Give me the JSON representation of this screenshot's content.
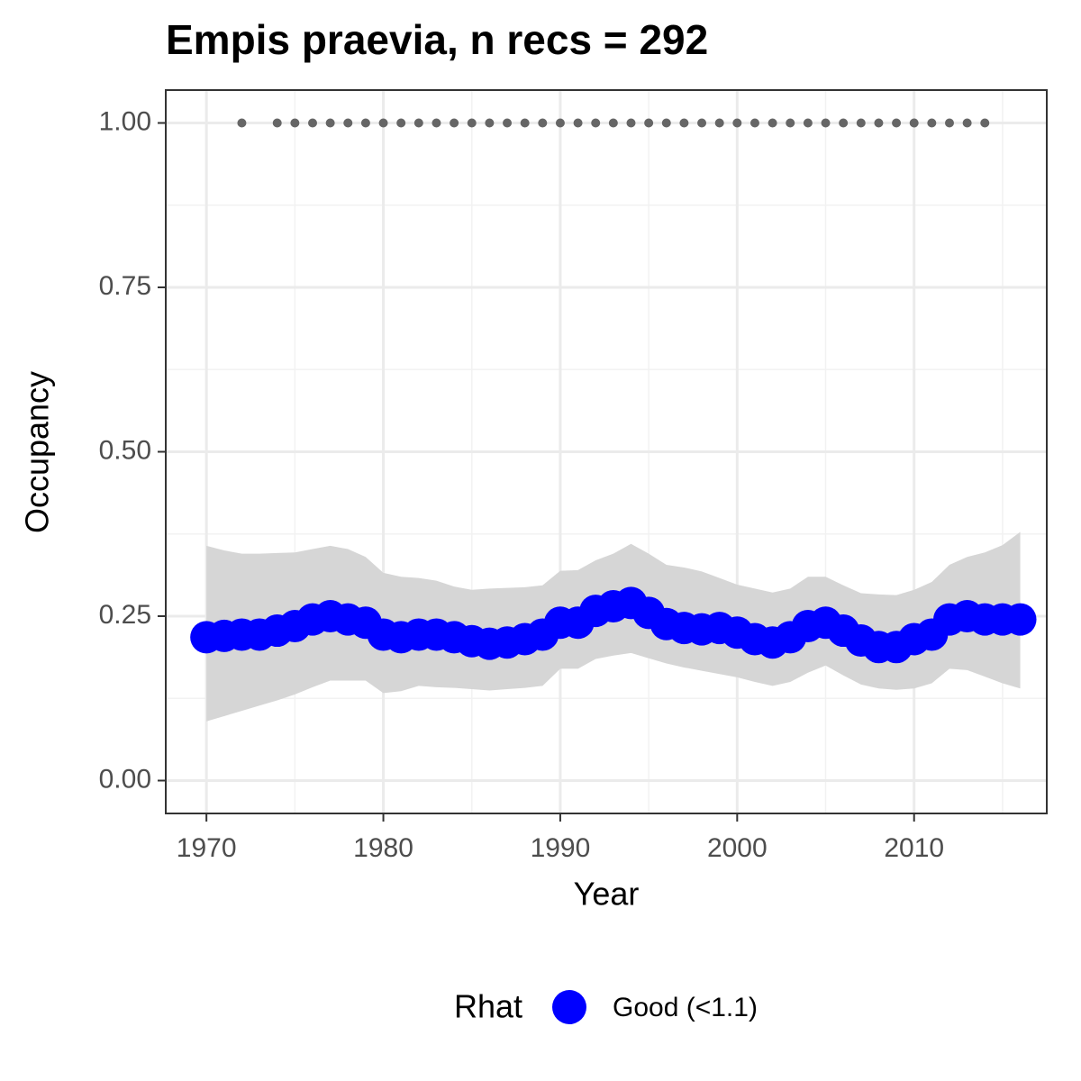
{
  "chart_data": {
    "type": "line",
    "title": "Empis praevia, n recs = 292",
    "x_label": "Year",
    "y_label": "Occupancy",
    "x": [
      1970,
      1971,
      1972,
      1973,
      1974,
      1975,
      1976,
      1977,
      1978,
      1979,
      1980,
      1981,
      1982,
      1983,
      1984,
      1985,
      1986,
      1987,
      1988,
      1989,
      1990,
      1991,
      1992,
      1993,
      1994,
      1995,
      1996,
      1997,
      1998,
      1999,
      2000,
      2001,
      2002,
      2003,
      2004,
      2005,
      2006,
      2007,
      2008,
      2009,
      2010,
      2011,
      2012,
      2013,
      2014,
      2015,
      2016
    ],
    "series": [
      {
        "name": "Good (<1.1)",
        "color": "#0000ff",
        "values": [
          0.218,
          0.22,
          0.222,
          0.222,
          0.228,
          0.235,
          0.245,
          0.25,
          0.245,
          0.24,
          0.222,
          0.218,
          0.222,
          0.222,
          0.218,
          0.212,
          0.208,
          0.21,
          0.215,
          0.222,
          0.24,
          0.24,
          0.258,
          0.265,
          0.27,
          0.255,
          0.238,
          0.232,
          0.23,
          0.232,
          0.225,
          0.215,
          0.21,
          0.218,
          0.235,
          0.24,
          0.228,
          0.213,
          0.203,
          0.203,
          0.215,
          0.222,
          0.245,
          0.25,
          0.245,
          0.245,
          0.245
        ],
        "upper": [
          0.357,
          0.35,
          0.345,
          0.345,
          0.346,
          0.347,
          0.352,
          0.357,
          0.352,
          0.34,
          0.316,
          0.31,
          0.308,
          0.304,
          0.295,
          0.29,
          0.292,
          0.293,
          0.294,
          0.297,
          0.319,
          0.32,
          0.335,
          0.345,
          0.36,
          0.345,
          0.328,
          0.324,
          0.318,
          0.308,
          0.298,
          0.292,
          0.286,
          0.292,
          0.31,
          0.31,
          0.297,
          0.285,
          0.283,
          0.282,
          0.29,
          0.302,
          0.328,
          0.34,
          0.347,
          0.358,
          0.378
        ],
        "lower": [
          0.09,
          0.098,
          0.106,
          0.114,
          0.122,
          0.131,
          0.142,
          0.152,
          0.152,
          0.152,
          0.133,
          0.136,
          0.144,
          0.142,
          0.141,
          0.139,
          0.137,
          0.139,
          0.141,
          0.144,
          0.17,
          0.17,
          0.185,
          0.19,
          0.194,
          0.186,
          0.178,
          0.172,
          0.167,
          0.162,
          0.157,
          0.15,
          0.144,
          0.15,
          0.164,
          0.175,
          0.16,
          0.146,
          0.14,
          0.138,
          0.14,
          0.148,
          0.17,
          0.168,
          0.158,
          0.148,
          0.14
        ],
        "band_color": "#d6d6d6"
      }
    ],
    "records": {
      "color": "#666666",
      "x": [
        1972,
        1974,
        1975,
        1976,
        1977,
        1978,
        1979,
        1980,
        1981,
        1982,
        1983,
        1984,
        1985,
        1986,
        1987,
        1988,
        1989,
        1990,
        1991,
        1992,
        1993,
        1994,
        1995,
        1996,
        1997,
        1998,
        1999,
        2000,
        2001,
        2002,
        2003,
        2004,
        2005,
        2006,
        2007,
        2008,
        2009,
        2010,
        2011,
        2012,
        2013,
        2014
      ],
      "values": [
        1,
        1,
        1,
        1,
        1,
        1,
        1,
        1,
        1,
        1,
        1,
        1,
        1,
        1,
        1,
        1,
        1,
        1,
        1,
        1,
        1,
        1,
        1,
        1,
        1,
        1,
        1,
        1,
        1,
        1,
        1,
        1,
        1,
        1,
        1,
        1,
        1,
        1,
        1,
        1,
        1,
        1
      ]
    },
    "legend_title": "Rhat",
    "legend_position": "bottom",
    "xlim": [
      1967.7,
      2017.5
    ],
    "ylim": [
      -0.05,
      1.05
    ],
    "xticks": [
      1970,
      1980,
      1990,
      2000,
      2010
    ],
    "yticks": [
      {
        "value": 0,
        "label": "0.00"
      },
      {
        "value": 0.25,
        "label": "0.25"
      },
      {
        "value": 0.5,
        "label": "0.50"
      },
      {
        "value": 0.75,
        "label": "0.75"
      },
      {
        "value": 1,
        "label": "1.00"
      }
    ],
    "grid": true
  }
}
